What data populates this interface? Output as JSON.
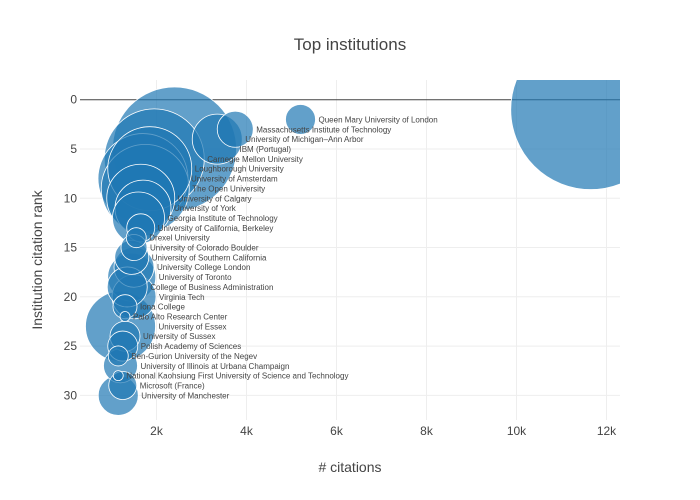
{
  "chart_data": {
    "type": "scatter",
    "title": "Top institutions",
    "xlabel": "# citations",
    "ylabel": "Institution citation rank",
    "xlim": [
      300,
      12300
    ],
    "ylim": [
      32.5,
      -2
    ],
    "x_ticks": [
      2000,
      4000,
      6000,
      8000,
      10000,
      12000
    ],
    "x_tick_labels": [
      "2k",
      "4k",
      "6k",
      "8k",
      "10k",
      "12k"
    ],
    "y_ticks": [
      0,
      5,
      10,
      15,
      20,
      25,
      30
    ],
    "y_tick_labels": [
      "0",
      "5",
      "10",
      "15",
      "20",
      "25",
      "30"
    ],
    "grid": true,
    "points": [
      {
        "x": 11650,
        "y": 1,
        "size": 80,
        "label": ""
      },
      {
        "x": 5200,
        "y": 2,
        "size": 15,
        "label": "Queen Mary University of London"
      },
      {
        "x": 3750,
        "y": 3,
        "size": 18,
        "label": "Massachusetts Institute of Technology"
      },
      {
        "x": 3350,
        "y": 4,
        "size": 25,
        "label": "University of Michigan–Ann Arbor"
      },
      {
        "x": 2400,
        "y": 5,
        "size": 62,
        "label": "IBM (Portugal)"
      },
      {
        "x": 1950,
        "y": 6,
        "size": 50,
        "label": "Carnegie Mellon University"
      },
      {
        "x": 1850,
        "y": 7,
        "size": 42,
        "label": "Loughborough University"
      },
      {
        "x": 1700,
        "y": 8,
        "size": 45,
        "label": "University of Amsterdam"
      },
      {
        "x": 1750,
        "y": 9,
        "size": 44,
        "label": "The Open University"
      },
      {
        "x": 1650,
        "y": 10,
        "size": 34,
        "label": "University of Calgary"
      },
      {
        "x": 1700,
        "y": 11,
        "size": 28,
        "label": "University of York"
      },
      {
        "x": 1600,
        "y": 12,
        "size": 26,
        "label": "Georgia Institute of Technology"
      },
      {
        "x": 1650,
        "y": 13,
        "size": 14,
        "label": "University of California, Berkeley"
      },
      {
        "x": 1550,
        "y": 14,
        "size": 10,
        "label": "Drexel University"
      },
      {
        "x": 1500,
        "y": 15,
        "size": 13,
        "label": "University of Colorado Boulder"
      },
      {
        "x": 1450,
        "y": 16,
        "size": 17,
        "label": "University of Southern California"
      },
      {
        "x": 1500,
        "y": 17,
        "size": 20,
        "label": "University College London"
      },
      {
        "x": 1450,
        "y": 18,
        "size": 24,
        "label": "University of Toronto"
      },
      {
        "x": 1350,
        "y": 19,
        "size": 20,
        "label": "College of Business Administration"
      },
      {
        "x": 1500,
        "y": 20,
        "size": 22,
        "label": "Virginia Tech"
      },
      {
        "x": 1300,
        "y": 21,
        "size": 12,
        "label": "Iona College"
      },
      {
        "x": 1300,
        "y": 22,
        "size": 5,
        "label": "Palo Alto Research Center"
      },
      {
        "x": 1200,
        "y": 23,
        "size": 35,
        "label": "University of Essex"
      },
      {
        "x": 1300,
        "y": 24,
        "size": 15,
        "label": "University of Sussex"
      },
      {
        "x": 1250,
        "y": 25,
        "size": 15,
        "label": "Polish Academy of Sciences"
      },
      {
        "x": 1150,
        "y": 26,
        "size": 10,
        "label": "Ben-Gurion University of the Negev"
      },
      {
        "x": 1200,
        "y": 27,
        "size": 17,
        "label": "University of Illinois at Urbana Champaign"
      },
      {
        "x": 1150,
        "y": 28,
        "size": 5,
        "label": "National Kaohsiung First University of Science and Technology"
      },
      {
        "x": 1250,
        "y": 29,
        "size": 14,
        "label": "Microsoft (France)"
      },
      {
        "x": 1150,
        "y": 30,
        "size": 20,
        "label": "University of Manchester"
      }
    ],
    "colors": {
      "marker": "#1f77b4",
      "text": "#444444",
      "grid": "#eeeeee",
      "zero_line": "#444444"
    }
  }
}
